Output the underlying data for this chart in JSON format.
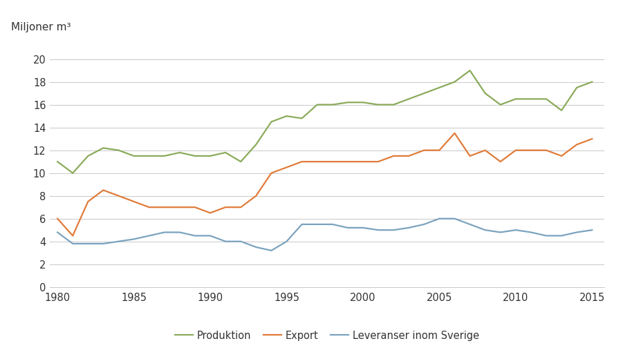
{
  "years": [
    1980,
    1981,
    1982,
    1983,
    1984,
    1985,
    1986,
    1987,
    1988,
    1989,
    1990,
    1991,
    1992,
    1993,
    1994,
    1995,
    1996,
    1997,
    1998,
    1999,
    2000,
    2001,
    2002,
    2003,
    2004,
    2005,
    2006,
    2007,
    2008,
    2009,
    2010,
    2011,
    2012,
    2013,
    2014,
    2015
  ],
  "produktion": [
    11.0,
    10.0,
    11.5,
    12.2,
    12.0,
    11.5,
    11.5,
    11.5,
    11.8,
    11.5,
    11.5,
    11.8,
    11.0,
    12.5,
    14.5,
    15.0,
    14.8,
    16.0,
    16.0,
    16.2,
    16.2,
    16.0,
    16.0,
    16.5,
    17.0,
    17.5,
    18.0,
    19.0,
    17.0,
    16.0,
    16.5,
    16.5,
    16.5,
    15.5,
    17.5,
    18.0
  ],
  "export": [
    6.0,
    4.5,
    7.5,
    8.5,
    8.0,
    7.5,
    7.0,
    7.0,
    7.0,
    7.0,
    6.5,
    7.0,
    7.0,
    8.0,
    10.0,
    10.5,
    11.0,
    11.0,
    11.0,
    11.0,
    11.0,
    11.0,
    11.5,
    11.5,
    12.0,
    12.0,
    13.5,
    11.5,
    12.0,
    11.0,
    12.0,
    12.0,
    12.0,
    11.5,
    12.5,
    13.0
  ],
  "leveranser": [
    4.8,
    3.8,
    3.8,
    3.8,
    4.0,
    4.2,
    4.5,
    4.8,
    4.8,
    4.5,
    4.5,
    4.0,
    4.0,
    3.5,
    3.2,
    4.0,
    5.5,
    5.5,
    5.5,
    5.2,
    5.2,
    5.0,
    5.0,
    5.2,
    5.5,
    6.0,
    6.0,
    5.5,
    5.0,
    4.8,
    5.0,
    4.8,
    4.5,
    4.5,
    4.8,
    5.0
  ],
  "produktion_color": "#8aab5a",
  "export_color": "#e07b39",
  "leveranser_color": "#7ba3be",
  "ylabel": "Miljoner m³",
  "yticks": [
    0,
    2,
    4,
    6,
    8,
    10,
    12,
    14,
    16,
    18,
    20
  ],
  "xticks": [
    1980,
    1985,
    1990,
    1995,
    2000,
    2005,
    2010,
    2015
  ],
  "xlim": [
    1979.5,
    2015.8
  ],
  "ylim": [
    0,
    21.5
  ],
  "legend_labels": [
    "Produktion",
    "Export",
    "Leveranser inom Sverige"
  ],
  "background_color": "#ffffff",
  "grid_color": "#c8c8c8",
  "line_width": 1.6,
  "tick_fontsize": 10.5,
  "ylabel_fontsize": 11
}
